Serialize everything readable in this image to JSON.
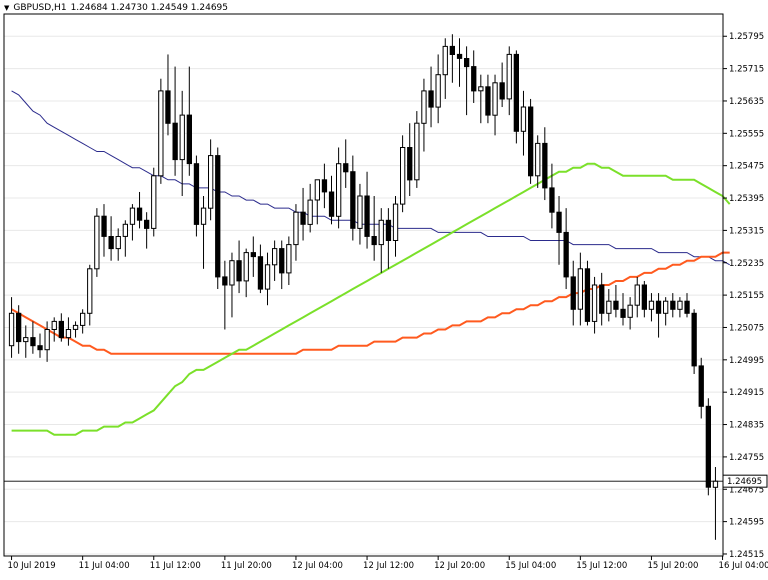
{
  "header": {
    "symbol": "GBPUSD,H1",
    "ohlc": "1.24684 1.24730 1.24549 1.24695"
  },
  "colors": {
    "bull": "#000000",
    "bull_fill": "#ffffff",
    "bear_fill": "#000000",
    "ma_slow": "#2b2b8c",
    "ma_mid": "#ff5a1f",
    "ma_fast": "#7be02a",
    "grid": "#e8e8e8"
  },
  "chart_data": {
    "type": "candlestick",
    "symbol": "GBPUSD",
    "timeframe": "H1",
    "ylim": [
      1.2451,
      1.2585
    ],
    "y_ticks": [
      "1.25795",
      "1.25715",
      "1.25635",
      "1.25555",
      "1.25475",
      "1.25395",
      "1.25315",
      "1.25235",
      "1.25155",
      "1.25075",
      "1.24995",
      "1.24915",
      "1.24835",
      "1.24755",
      "1.24675",
      "1.24595",
      "1.24515"
    ],
    "x_tick_labels": [
      "10 Jul 2019",
      "11 Jul 04:00",
      "11 Jul 12:00",
      "11 Jul 20:00",
      "12 Jul 04:00",
      "12 Jul 12:00",
      "12 Jul 20:00",
      "15 Jul 04:00",
      "15 Jul 12:00",
      "15 Jul 20:00",
      "16 Jul 04:00"
    ],
    "x_tick_bar_index": [
      0,
      10,
      20,
      30,
      40,
      50,
      60,
      70,
      80,
      90,
      100
    ],
    "current_price": "1.24695",
    "candles": [
      {
        "o": 1.2503,
        "h": 1.2515,
        "l": 1.25,
        "c": 1.2511
      },
      {
        "o": 1.2511,
        "h": 1.2513,
        "l": 1.2501,
        "c": 1.2504
      },
      {
        "o": 1.2504,
        "h": 1.2508,
        "l": 1.25,
        "c": 1.2505
      },
      {
        "o": 1.2505,
        "h": 1.2509,
        "l": 1.2501,
        "c": 1.2503
      },
      {
        "o": 1.2503,
        "h": 1.2506,
        "l": 1.25,
        "c": 1.2502
      },
      {
        "o": 1.2502,
        "h": 1.2509,
        "l": 1.2499,
        "c": 1.2507
      },
      {
        "o": 1.2507,
        "h": 1.251,
        "l": 1.2504,
        "c": 1.2509
      },
      {
        "o": 1.2509,
        "h": 1.2511,
        "l": 1.2504,
        "c": 1.2505
      },
      {
        "o": 1.2505,
        "h": 1.251,
        "l": 1.2503,
        "c": 1.2507
      },
      {
        "o": 1.2507,
        "h": 1.2509,
        "l": 1.2505,
        "c": 1.2508
      },
      {
        "o": 1.2508,
        "h": 1.2512,
        "l": 1.2506,
        "c": 1.2511
      },
      {
        "o": 1.2511,
        "h": 1.2523,
        "l": 1.2508,
        "c": 1.2522
      },
      {
        "o": 1.2522,
        "h": 1.2537,
        "l": 1.252,
        "c": 1.2535
      },
      {
        "o": 1.2535,
        "h": 1.2538,
        "l": 1.2525,
        "c": 1.253
      },
      {
        "o": 1.253,
        "h": 1.2535,
        "l": 1.2524,
        "c": 1.2527
      },
      {
        "o": 1.2527,
        "h": 1.2532,
        "l": 1.2524,
        "c": 1.253
      },
      {
        "o": 1.253,
        "h": 1.2534,
        "l": 1.2525,
        "c": 1.2533
      },
      {
        "o": 1.2533,
        "h": 1.2538,
        "l": 1.2529,
        "c": 1.2537
      },
      {
        "o": 1.2537,
        "h": 1.2541,
        "l": 1.2532,
        "c": 1.2534
      },
      {
        "o": 1.2534,
        "h": 1.2536,
        "l": 1.2527,
        "c": 1.2532
      },
      {
        "o": 1.2532,
        "h": 1.2547,
        "l": 1.253,
        "c": 1.2545
      },
      {
        "o": 1.2545,
        "h": 1.2569,
        "l": 1.2543,
        "c": 1.2566
      },
      {
        "o": 1.2566,
        "h": 1.2575,
        "l": 1.2555,
        "c": 1.2558
      },
      {
        "o": 1.2558,
        "h": 1.2572,
        "l": 1.2545,
        "c": 1.2549
      },
      {
        "o": 1.2549,
        "h": 1.2566,
        "l": 1.254,
        "c": 1.256
      },
      {
        "o": 1.256,
        "h": 1.2572,
        "l": 1.2545,
        "c": 1.2548
      },
      {
        "o": 1.2548,
        "h": 1.255,
        "l": 1.253,
        "c": 1.2533
      },
      {
        "o": 1.2533,
        "h": 1.254,
        "l": 1.2522,
        "c": 1.2537
      },
      {
        "o": 1.2537,
        "h": 1.2554,
        "l": 1.2534,
        "c": 1.255
      },
      {
        "o": 1.255,
        "h": 1.2552,
        "l": 1.2517,
        "c": 1.252
      },
      {
        "o": 1.252,
        "h": 1.2524,
        "l": 1.2507,
        "c": 1.2518
      },
      {
        "o": 1.2518,
        "h": 1.2526,
        "l": 1.251,
        "c": 1.2524
      },
      {
        "o": 1.2524,
        "h": 1.2529,
        "l": 1.2516,
        "c": 1.2519
      },
      {
        "o": 1.2519,
        "h": 1.2527,
        "l": 1.2515,
        "c": 1.2526
      },
      {
        "o": 1.2526,
        "h": 1.253,
        "l": 1.252,
        "c": 1.2525
      },
      {
        "o": 1.2525,
        "h": 1.2528,
        "l": 1.2516,
        "c": 1.2517
      },
      {
        "o": 1.2517,
        "h": 1.2526,
        "l": 1.2513,
        "c": 1.2523
      },
      {
        "o": 1.2523,
        "h": 1.2529,
        "l": 1.2519,
        "c": 1.2527
      },
      {
        "o": 1.2527,
        "h": 1.2529,
        "l": 1.2517,
        "c": 1.2521
      },
      {
        "o": 1.2521,
        "h": 1.253,
        "l": 1.2518,
        "c": 1.2528
      },
      {
        "o": 1.2528,
        "h": 1.2538,
        "l": 1.2524,
        "c": 1.2536
      },
      {
        "o": 1.2536,
        "h": 1.2542,
        "l": 1.2529,
        "c": 1.2533
      },
      {
        "o": 1.2533,
        "h": 1.2543,
        "l": 1.2531,
        "c": 1.2539
      },
      {
        "o": 1.2539,
        "h": 1.2544,
        "l": 1.2533,
        "c": 1.2544
      },
      {
        "o": 1.2544,
        "h": 1.2548,
        "l": 1.2537,
        "c": 1.2541
      },
      {
        "o": 1.2541,
        "h": 1.2545,
        "l": 1.2533,
        "c": 1.2535
      },
      {
        "o": 1.2535,
        "h": 1.2552,
        "l": 1.2532,
        "c": 1.2548
      },
      {
        "o": 1.2548,
        "h": 1.2554,
        "l": 1.2542,
        "c": 1.2546
      },
      {
        "o": 1.2546,
        "h": 1.255,
        "l": 1.2529,
        "c": 1.2532
      },
      {
        "o": 1.2532,
        "h": 1.2543,
        "l": 1.2528,
        "c": 1.254
      },
      {
        "o": 1.254,
        "h": 1.2546,
        "l": 1.2527,
        "c": 1.253
      },
      {
        "o": 1.253,
        "h": 1.254,
        "l": 1.2524,
        "c": 1.2528
      },
      {
        "o": 1.2528,
        "h": 1.2537,
        "l": 1.2521,
        "c": 1.2534
      },
      {
        "o": 1.2534,
        "h": 1.2537,
        "l": 1.2522,
        "c": 1.2529
      },
      {
        "o": 1.2529,
        "h": 1.254,
        "l": 1.2525,
        "c": 1.2538
      },
      {
        "o": 1.2538,
        "h": 1.2555,
        "l": 1.2536,
        "c": 1.2552
      },
      {
        "o": 1.2552,
        "h": 1.2558,
        "l": 1.254,
        "c": 1.2544
      },
      {
        "o": 1.2544,
        "h": 1.2561,
        "l": 1.2542,
        "c": 1.2558
      },
      {
        "o": 1.2558,
        "h": 1.2569,
        "l": 1.2551,
        "c": 1.2566
      },
      {
        "o": 1.2566,
        "h": 1.2572,
        "l": 1.2557,
        "c": 1.2562
      },
      {
        "o": 1.2562,
        "h": 1.2575,
        "l": 1.2558,
        "c": 1.257
      },
      {
        "o": 1.257,
        "h": 1.2579,
        "l": 1.2564,
        "c": 1.2577
      },
      {
        "o": 1.2577,
        "h": 1.258,
        "l": 1.2568,
        "c": 1.2575
      },
      {
        "o": 1.2575,
        "h": 1.2579,
        "l": 1.2567,
        "c": 1.2574
      },
      {
        "o": 1.2574,
        "h": 1.2577,
        "l": 1.256,
        "c": 1.2572
      },
      {
        "o": 1.2572,
        "h": 1.2576,
        "l": 1.2563,
        "c": 1.2566
      },
      {
        "o": 1.2566,
        "h": 1.257,
        "l": 1.2558,
        "c": 1.2567
      },
      {
        "o": 1.2567,
        "h": 1.257,
        "l": 1.2558,
        "c": 1.256
      },
      {
        "o": 1.256,
        "h": 1.257,
        "l": 1.2555,
        "c": 1.2568
      },
      {
        "o": 1.2568,
        "h": 1.2573,
        "l": 1.2562,
        "c": 1.2564
      },
      {
        "o": 1.2564,
        "h": 1.2577,
        "l": 1.256,
        "c": 1.2575
      },
      {
        "o": 1.2575,
        "h": 1.2576,
        "l": 1.2553,
        "c": 1.2556
      },
      {
        "o": 1.2556,
        "h": 1.2566,
        "l": 1.255,
        "c": 1.2562
      },
      {
        "o": 1.2562,
        "h": 1.2564,
        "l": 1.2543,
        "c": 1.2545
      },
      {
        "o": 1.2545,
        "h": 1.2555,
        "l": 1.2542,
        "c": 1.2553
      },
      {
        "o": 1.2553,
        "h": 1.2557,
        "l": 1.2539,
        "c": 1.2542
      },
      {
        "o": 1.2542,
        "h": 1.2548,
        "l": 1.2532,
        "c": 1.2536
      },
      {
        "o": 1.2536,
        "h": 1.254,
        "l": 1.2523,
        "c": 1.2531
      },
      {
        "o": 1.2531,
        "h": 1.2537,
        "l": 1.2517,
        "c": 1.252
      },
      {
        "o": 1.252,
        "h": 1.2524,
        "l": 1.2508,
        "c": 1.2512
      },
      {
        "o": 1.2512,
        "h": 1.2526,
        "l": 1.2508,
        "c": 1.2522
      },
      {
        "o": 1.2522,
        "h": 1.2524,
        "l": 1.2508,
        "c": 1.2509
      },
      {
        "o": 1.2509,
        "h": 1.252,
        "l": 1.2506,
        "c": 1.2518
      },
      {
        "o": 1.2518,
        "h": 1.2521,
        "l": 1.2508,
        "c": 1.2511
      },
      {
        "o": 1.2511,
        "h": 1.2517,
        "l": 1.2509,
        "c": 1.2514
      },
      {
        "o": 1.2514,
        "h": 1.2518,
        "l": 1.251,
        "c": 1.2512
      },
      {
        "o": 1.2512,
        "h": 1.2516,
        "l": 1.2508,
        "c": 1.251
      },
      {
        "o": 1.251,
        "h": 1.2515,
        "l": 1.2507,
        "c": 1.2513
      },
      {
        "o": 1.2513,
        "h": 1.252,
        "l": 1.251,
        "c": 1.2518
      },
      {
        "o": 1.2518,
        "h": 1.2519,
        "l": 1.251,
        "c": 1.2512
      },
      {
        "o": 1.2512,
        "h": 1.2516,
        "l": 1.2509,
        "c": 1.2514
      },
      {
        "o": 1.2514,
        "h": 1.2516,
        "l": 1.2505,
        "c": 1.2511
      },
      {
        "o": 1.2511,
        "h": 1.2515,
        "l": 1.2508,
        "c": 1.2514
      },
      {
        "o": 1.2514,
        "h": 1.2516,
        "l": 1.251,
        "c": 1.2512
      },
      {
        "o": 1.2512,
        "h": 1.2515,
        "l": 1.251,
        "c": 1.2514
      },
      {
        "o": 1.2514,
        "h": 1.2516,
        "l": 1.251,
        "c": 1.2511
      },
      {
        "o": 1.2511,
        "h": 1.2512,
        "l": 1.2496,
        "c": 1.2498
      },
      {
        "o": 1.2498,
        "h": 1.25,
        "l": 1.2485,
        "c": 1.2488
      },
      {
        "o": 1.2488,
        "h": 1.249,
        "l": 1.2466,
        "c": 1.2468
      },
      {
        "o": 1.2468,
        "h": 1.2473,
        "l": 1.2455,
        "c": 1.24695
      }
    ],
    "ma_slow": [
      1.2566,
      1.2565,
      1.2563,
      1.2561,
      1.256,
      1.2558,
      1.2557,
      1.2556,
      1.2555,
      1.2554,
      1.2553,
      1.2552,
      1.2551,
      1.2551,
      1.255,
      1.2549,
      1.2548,
      1.2547,
      1.2547,
      1.2546,
      1.2545,
      1.2545,
      1.2544,
      1.2544,
      1.2543,
      1.2543,
      1.2542,
      1.2542,
      1.2542,
      1.2541,
      1.2541,
      1.254,
      1.254,
      1.2539,
      1.2539,
      1.2538,
      1.2538,
      1.2537,
      1.2537,
      1.2537,
      1.2536,
      1.2536,
      1.2535,
      1.2535,
      1.2535,
      1.2534,
      1.2534,
      1.2534,
      1.2534,
      1.2533,
      1.2533,
      1.2533,
      1.2533,
      1.2533,
      1.2532,
      1.2532,
      1.2532,
      1.2532,
      1.2532,
      1.2532,
      1.2531,
      1.2531,
      1.2531,
      1.2531,
      1.2531,
      1.2531,
      1.2531,
      1.253,
      1.253,
      1.253,
      1.253,
      1.253,
      1.253,
      1.2529,
      1.2529,
      1.2529,
      1.2529,
      1.2529,
      1.2529,
      1.2528,
      1.2528,
      1.2528,
      1.2528,
      1.2528,
      1.2528,
      1.2527,
      1.2527,
      1.2527,
      1.2527,
      1.2527,
      1.2527,
      1.2526,
      1.2526,
      1.2526,
      1.2526,
      1.2526,
      1.2525,
      1.2525,
      1.2525,
      1.2524,
      1.2524,
      1.2523
    ],
    "ma_mid": [
      1.2512,
      1.2511,
      1.251,
      1.2509,
      1.2508,
      1.2507,
      1.2506,
      1.2505,
      1.2505,
      1.2504,
      1.2503,
      1.2503,
      1.2502,
      1.2502,
      1.2501,
      1.2501,
      1.2501,
      1.2501,
      1.2501,
      1.2501,
      1.2501,
      1.2501,
      1.2501,
      1.2501,
      1.2501,
      1.2501,
      1.2501,
      1.2501,
      1.2501,
      1.2501,
      1.2501,
      1.2501,
      1.2501,
      1.2501,
      1.2501,
      1.2501,
      1.2501,
      1.2501,
      1.2501,
      1.2501,
      1.2501,
      1.2502,
      1.2502,
      1.2502,
      1.2502,
      1.2502,
      1.2503,
      1.2503,
      1.2503,
      1.2503,
      1.2503,
      1.2504,
      1.2504,
      1.2504,
      1.2504,
      1.2505,
      1.2505,
      1.2505,
      1.2506,
      1.2506,
      1.2507,
      1.2507,
      1.2508,
      1.2508,
      1.2509,
      1.2509,
      1.2509,
      1.251,
      1.251,
      1.2511,
      1.2511,
      1.2512,
      1.2512,
      1.2513,
      1.2513,
      1.2514,
      1.2514,
      1.2515,
      1.2515,
      1.2516,
      1.2516,
      1.2517,
      1.2517,
      1.2518,
      1.2518,
      1.2519,
      1.2519,
      1.252,
      1.252,
      1.2521,
      1.2521,
      1.2522,
      1.2522,
      1.2523,
      1.2523,
      1.2524,
      1.2524,
      1.2525,
      1.2525,
      1.2525,
      1.2526,
      1.2526
    ],
    "ma_fast": [
      1.2482,
      1.2482,
      1.2482,
      1.2482,
      1.2482,
      1.2482,
      1.2481,
      1.2481,
      1.2481,
      1.2481,
      1.2482,
      1.2482,
      1.2482,
      1.2483,
      1.2483,
      1.2483,
      1.2484,
      1.2484,
      1.2485,
      1.2486,
      1.2487,
      1.2489,
      1.2491,
      1.2493,
      1.2494,
      1.2496,
      1.2497,
      1.2497,
      1.2498,
      1.2499,
      1.25,
      1.2501,
      1.2502,
      1.2502,
      1.2503,
      1.2504,
      1.2505,
      1.2506,
      1.2507,
      1.2508,
      1.2509,
      1.251,
      1.2511,
      1.2512,
      1.2513,
      1.2514,
      1.2515,
      1.2516,
      1.2517,
      1.2518,
      1.2519,
      1.252,
      1.2521,
      1.2522,
      1.2523,
      1.2524,
      1.2525,
      1.2526,
      1.2527,
      1.2528,
      1.2529,
      1.253,
      1.2531,
      1.2532,
      1.2533,
      1.2534,
      1.2535,
      1.2536,
      1.2537,
      1.2538,
      1.2539,
      1.254,
      1.2541,
      1.2542,
      1.2543,
      1.2544,
      1.2545,
      1.2546,
      1.2546,
      1.2547,
      1.2547,
      1.2548,
      1.2548,
      1.2547,
      1.2547,
      1.2546,
      1.2545,
      1.2545,
      1.2545,
      1.2545,
      1.2545,
      1.2545,
      1.2545,
      1.2544,
      1.2544,
      1.2544,
      1.2544,
      1.2543,
      1.2542,
      1.2541,
      1.254,
      1.2538
    ]
  }
}
